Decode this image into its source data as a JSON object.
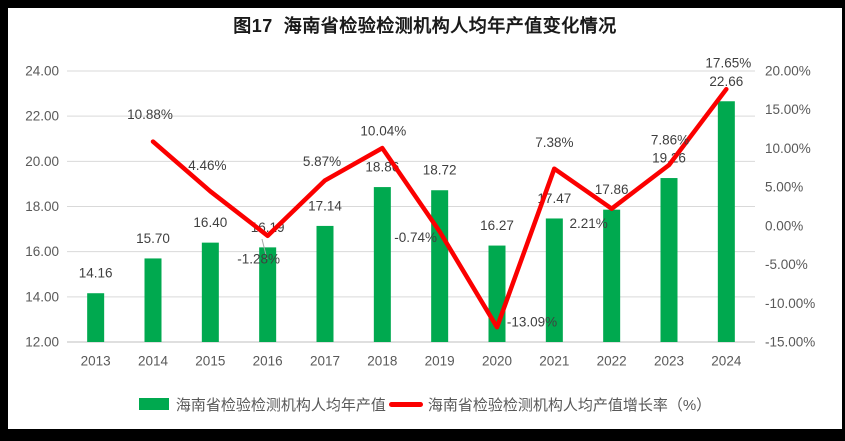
{
  "title": "图17  海南省检验检测机构人均年产值变化情况",
  "chart_data": {
    "type": "bar+line",
    "categories": [
      "2013",
      "2014",
      "2015",
      "2016",
      "2017",
      "2018",
      "2019",
      "2020",
      "2021",
      "2022",
      "2023",
      "2024"
    ],
    "series": [
      {
        "name": "海南省检验检测机构人均年产值",
        "type": "bar",
        "axis": "left",
        "color": "#00A94F",
        "values": [
          14.16,
          15.7,
          16.4,
          16.19,
          17.14,
          18.86,
          18.72,
          16.27,
          17.47,
          17.86,
          19.26,
          22.66
        ],
        "labels": [
          "14.16",
          "15.70",
          "16.40",
          "16.19",
          "17.14",
          "18.86",
          "18.72",
          "16.27",
          "17.47",
          "17.86",
          "19.26",
          "22.66"
        ]
      },
      {
        "name": "海南省检验检测机构人均产值增长率（%）",
        "type": "line",
        "axis": "right",
        "color": "#FB0000",
        "values": [
          null,
          10.88,
          4.46,
          -1.28,
          5.87,
          10.04,
          -0.74,
          -13.09,
          7.38,
          2.21,
          7.86,
          17.65
        ],
        "labels": [
          null,
          "10.88%",
          "4.46%",
          "-1.28%",
          "5.87%",
          "10.04%",
          "-0.74%",
          "-13.09%",
          "7.38%",
          "2.21%",
          "7.86%",
          "17.65%"
        ]
      }
    ],
    "left_axis": {
      "min": 12,
      "max": 24,
      "step": 2,
      "tick_labels": [
        "24.00",
        "22.00",
        "20.00",
        "18.00",
        "16.00",
        "14.00",
        "12.00"
      ]
    },
    "right_axis": {
      "min": -15,
      "max": 20,
      "step": 5,
      "tick_labels": [
        "20.00%",
        "15.00%",
        "10.00%",
        "5.00%",
        "0.00%",
        "-5.00%",
        "-10.00%",
        "-15.00%"
      ]
    },
    "grid": true,
    "legend_position": "bottom"
  },
  "legend": {
    "items": [
      {
        "label": "海南省检验检测机构人均年产值",
        "swatch": "bar",
        "color": "#00A94F"
      },
      {
        "label": "海南省检验检测机构人均产值增长率（%）",
        "swatch": "line",
        "color": "#FB0000"
      }
    ]
  },
  "colors": {
    "bar_green": "#00A94F",
    "line_red": "#FB0000",
    "grid": "#D9D9D9",
    "axis_line": "#BFBFBF",
    "tick_text": "#595959",
    "label_text": "#3F3F3F",
    "title_text": "#1A1A1A",
    "leader_line": "#A6A6A6",
    "frame": "#000000",
    "background": "#FFFFFF"
  }
}
